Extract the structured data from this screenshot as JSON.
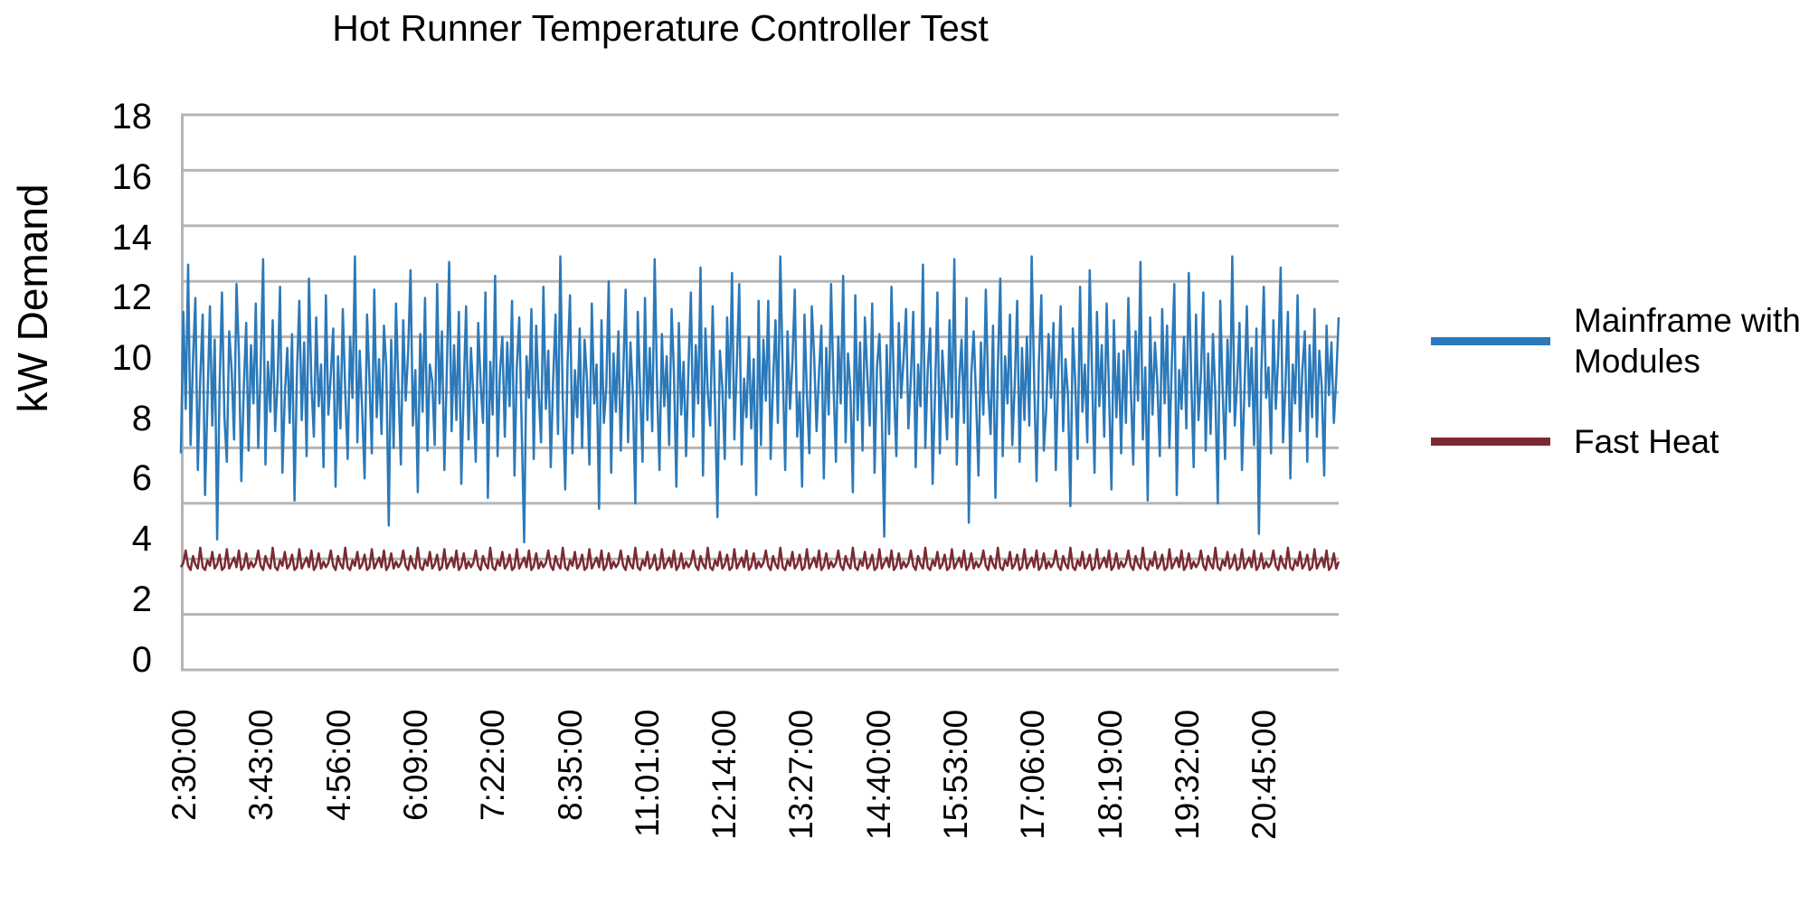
{
  "chart_data": {
    "type": "line",
    "title": "Hot Runner Temperature Controller Test",
    "ylabel": "kW Demand",
    "xlabel": "",
    "ylim": [
      0,
      20
    ],
    "y_major_unit": 2,
    "y_tick_labels": [
      "0",
      "2",
      "4",
      "6",
      "8",
      "10",
      "12",
      "14",
      "16",
      "18"
    ],
    "y_tick_values": [
      0,
      2,
      4,
      6,
      8,
      10,
      12,
      14,
      16,
      18
    ],
    "x_tick_labels": [
      "2:30:00",
      "3:43:00",
      "4:56:00",
      "6:09:00",
      "7:22:00",
      "8:35:00",
      "11:01:00",
      "12:14:00",
      "13:27:00",
      "14:40:00",
      "15:53:00",
      "17:06:00",
      "18:19:00",
      "19:32:00",
      "20:45:00"
    ],
    "grid": true,
    "gridline_color": "#B5B5B5",
    "axis_line_color": "#B5B5B5",
    "legend_position": "right",
    "series": [
      {
        "name": "Mainframe with Modules",
        "color": "#2B79B9",
        "values": [
          7.8,
          12.9,
          9.4,
          14.6,
          8.1,
          11.2,
          13.4,
          7.2,
          10.5,
          12.8,
          6.3,
          9.7,
          13.1,
          8.8,
          11.9,
          4.7,
          10.2,
          13.6,
          9.1,
          7.5,
          12.2,
          10.8,
          8.3,
          13.9,
          11.4,
          6.8,
          10.1,
          12.5,
          7.9,
          11.7,
          9.6,
          13.2,
          8.0,
          10.9,
          14.8,
          7.4,
          11.1,
          9.3,
          12.6,
          8.6,
          10.4,
          13.8,
          7.1,
          9.9,
          11.6,
          8.9,
          12.1,
          6.1,
          10.7,
          13.3,
          9.0,
          11.8,
          7.7,
          14.1,
          10.3,
          8.4,
          12.7,
          9.5,
          11.0,
          7.3,
          13.5,
          9.2,
          10.6,
          12.3,
          6.6,
          11.3,
          8.7,
          13.0,
          10.0,
          7.6,
          12.0,
          9.8,
          14.9,
          8.2,
          11.5,
          9.4,
          6.9,
          12.8,
          10.5,
          7.8,
          13.7,
          9.1,
          11.2,
          8.5,
          12.4,
          10.9,
          5.2,
          11.9,
          8.0,
          13.2,
          10.2,
          7.4,
          12.6,
          9.7,
          11.4,
          14.4,
          8.8,
          10.8,
          6.4,
          12.1,
          9.3,
          13.4,
          7.9,
          11.0,
          10.4,
          8.1,
          13.9,
          9.6,
          12.2,
          7.2,
          10.6,
          14.7,
          8.6,
          11.7,
          9.0,
          12.9,
          6.7,
          10.1,
          13.1,
          8.3,
          11.6,
          9.9,
          7.5,
          12.5,
          10.3,
          8.9,
          13.6,
          6.2,
          11.1,
          9.2,
          14.2,
          7.7,
          10.7,
          12.0,
          8.4,
          11.8,
          9.5,
          13.3,
          7.0,
          10.9,
          12.7,
          8.7,
          4.6,
          11.3,
          9.8,
          13.0,
          7.6,
          12.4,
          10.0,
          8.2,
          13.8,
          9.4,
          11.5,
          7.3,
          10.4,
          12.8,
          8.5,
          14.9,
          9.7,
          6.5,
          11.2,
          13.5,
          7.8,
          10.8,
          9.1,
          12.3,
          8.0,
          11.9,
          10.5,
          7.4,
          13.2,
          9.6,
          11.0,
          5.8,
          12.6,
          8.9,
          10.2,
          14.0,
          7.1,
          11.4,
          9.3,
          12.2,
          7.9,
          10.6,
          13.7,
          8.2,
          11.8,
          9.9,
          6.0,
          12.9,
          10.1,
          7.5,
          13.4,
          9.0,
          11.6,
          8.6,
          14.8,
          10.3,
          7.2,
          12.1,
          9.5,
          11.3,
          8.1,
          13.0,
          10.7,
          6.6,
          12.5,
          9.2,
          11.1,
          7.7,
          10.9,
          13.6,
          8.4,
          11.7,
          9.6,
          14.5,
          7.0,
          12.3,
          10.0,
          8.8,
          13.1,
          9.4,
          5.5,
          11.5,
          10.2,
          7.6,
          12.7,
          9.8,
          14.3,
          8.3,
          11.0,
          13.9,
          7.4,
          10.5,
          9.1,
          12.0,
          8.7,
          11.2,
          6.3,
          13.3,
          8.1,
          11.9,
          9.7,
          13.3,
          7.6,
          10.4,
          12.6,
          8.9,
          14.9,
          10.8,
          7.2,
          12.2,
          9.4,
          11.1,
          13.7,
          8.4,
          10.0,
          6.6,
          12.8,
          9.9,
          7.8,
          13.1,
          11.3,
          8.6,
          10.7,
          12.4,
          6.9,
          11.6,
          9.2,
          13.9,
          10.3,
          7.5,
          12.0,
          9.6,
          14.2,
          8.2,
          11.4,
          10.1,
          6.4,
          13.5,
          9.0,
          11.8,
          7.9,
          12.7,
          10.6,
          8.8,
          13.2,
          7.1,
          10.9,
          12.1,
          9.3,
          4.8,
          11.7,
          8.5,
          13.8,
          10.2,
          7.7,
          12.5,
          9.8,
          11.2,
          13.0,
          8.7,
          10.5,
          12.9,
          7.3,
          11.0,
          9.5,
          14.6,
          8.0,
          10.8,
          12.3,
          6.7,
          9.9,
          13.6,
          7.8,
          11.5,
          10.0,
          8.3,
          12.6,
          9.1,
          14.8,
          7.4,
          10.4,
          11.9,
          8.9,
          13.4,
          5.3,
          10.6,
          12.2,
          9.7,
          7.0,
          11.8,
          9.2,
          13.7,
          10.1,
          8.5,
          12.4,
          6.2,
          10.9,
          14.1,
          7.7,
          11.3,
          9.6,
          12.8,
          8.1,
          10.3,
          13.3,
          7.5,
          11.6,
          9.0,
          12.0,
          8.8,
          14.9,
          10.5,
          6.8,
          11.1,
          13.5,
          7.9,
          9.4,
          12.1,
          9.8,
          12.5,
          7.2,
          10.7,
          13.1,
          8.6,
          11.2,
          9.9,
          5.9,
          12.3,
          10.4,
          7.6,
          13.8,
          9.3,
          11.0,
          8.2,
          14.4,
          10.6,
          7.1,
          12.9,
          9.5,
          11.7,
          8.4,
          13.2,
          10.0,
          6.5,
          12.6,
          9.1,
          11.4,
          7.8,
          11.5,
          8.9,
          13.4,
          10.2,
          7.4,
          12.2,
          9.7,
          14.7,
          8.3,
          10.9,
          6.1,
          12.7,
          9.2,
          11.8,
          10.3,
          7.7,
          13.0,
          9.6,
          12.4,
          8.0,
          11.1,
          13.9,
          6.3,
          10.8,
          9.4,
          12.0,
          8.7,
          14.3,
          10.5,
          7.3,
          12.8,
          9.0,
          10.6,
          13.6,
          7.9,
          11.4,
          8.5,
          12.1,
          9.9,
          6.0,
          13.3,
          10.1,
          7.6,
          11.9,
          9.3,
          14.9,
          8.8,
          10.4,
          12.5,
          7.2,
          10.0,
          13.1,
          9.5,
          11.6,
          8.1,
          12.3,
          4.9,
          10.7,
          13.8,
          9.8,
          10.9,
          7.8,
          12.6,
          9.4,
          11.3,
          14.5,
          8.2,
          10.3,
          12.9,
          6.9,
          11.0,
          9.6,
          13.5,
          8.6,
          10.8,
          12.2,
          7.5,
          11.7,
          9.1,
          13.0,
          8.4,
          11.5,
          10.2,
          7.0,
          12.4,
          9.9,
          11.8,
          8.9,
          10.5,
          12.7
        ]
      },
      {
        "name": "Fast Heat",
        "color": "#7B2A32",
        "pattern": [
          3.7,
          3.85,
          4.3,
          3.75,
          3.6,
          4.1,
          3.8,
          3.65,
          4.4,
          3.7,
          3.6,
          3.95,
          3.75,
          4.25,
          3.65,
          3.8,
          4.15,
          3.6,
          3.7,
          4.35,
          3.65,
          3.85,
          4.05,
          3.7,
          4.3,
          3.6,
          3.75,
          4.2,
          3.65,
          3.9
        ],
        "pattern_repeat": 16
      }
    ]
  }
}
